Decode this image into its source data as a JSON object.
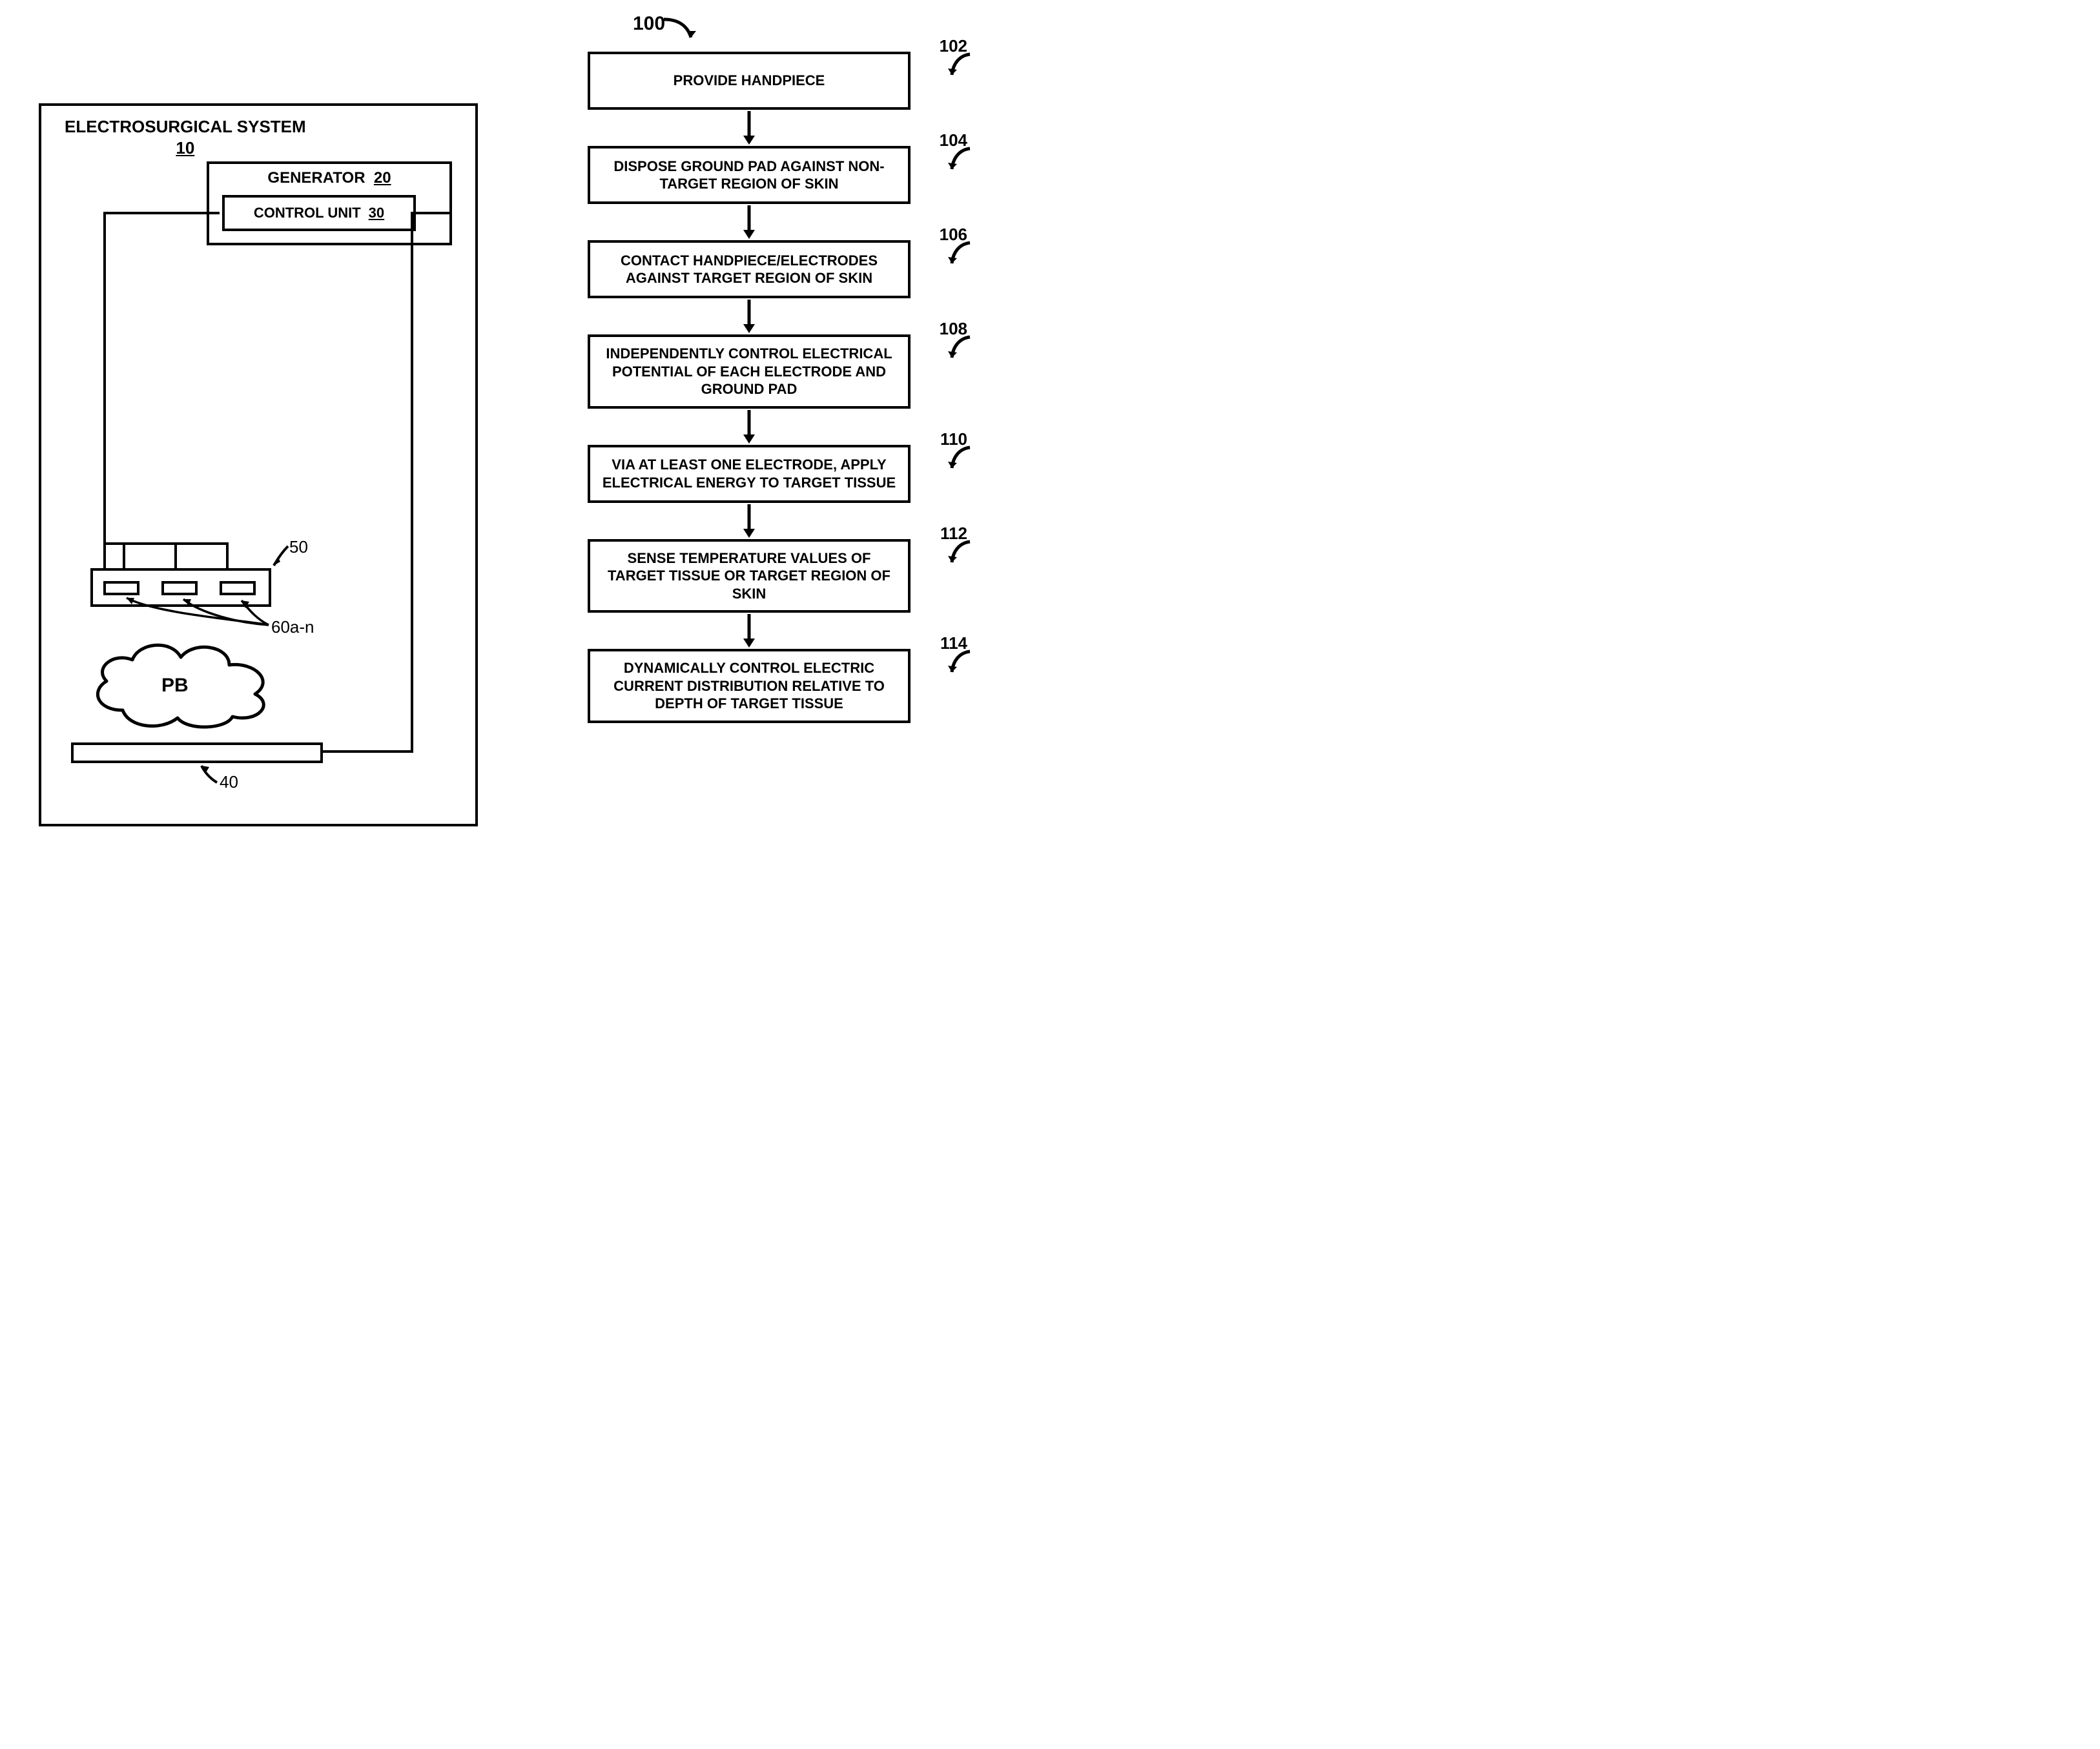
{
  "colors": {
    "stroke": "#000000",
    "background": "#ffffff"
  },
  "typography": {
    "family": "Arial, Helvetica, sans-serif",
    "label_fontsize": 26,
    "step_fontsize": 22
  },
  "left_diagram": {
    "system": {
      "title": "ELECTROSURGICAL SYSTEM",
      "ref": "10"
    },
    "generator": {
      "title": "GENERATOR",
      "ref": "20"
    },
    "control_unit": {
      "title": "CONTROL UNIT",
      "ref": "30"
    },
    "handpiece_ref": "50",
    "electrodes_ref": "60a-n",
    "groundpad_ref": "40",
    "patient_label": "PB"
  },
  "flowchart": {
    "type": "flowchart",
    "ref": "100",
    "box_stroke_width": 4,
    "arrow_stroke_width": 4,
    "steps": [
      {
        "ref": "102",
        "text": "PROVIDE HANDPIECE"
      },
      {
        "ref": "104",
        "text": "DISPOSE GROUND PAD AGAINST NON-TARGET REGION OF SKIN"
      },
      {
        "ref": "106",
        "text": "CONTACT HANDPIECE/ELECTRODES AGAINST TARGET REGION OF SKIN"
      },
      {
        "ref": "108",
        "text": "INDEPENDENTLY CONTROL ELECTRICAL POTENTIAL OF EACH ELECTRODE AND GROUND PAD"
      },
      {
        "ref": "110",
        "text": "VIA AT LEAST ONE ELECTRODE, APPLY ELECTRICAL ENERGY TO TARGET TISSUE"
      },
      {
        "ref": "112",
        "text": "SENSE TEMPERATURE VALUES OF TARGET TISSUE OR TARGET REGION OF SKIN"
      },
      {
        "ref": "114",
        "text": "DYNAMICALLY CONTROL ELECTRIC CURRENT DISTRIBUTION RELATIVE TO DEPTH OF TARGET TISSUE"
      }
    ]
  }
}
